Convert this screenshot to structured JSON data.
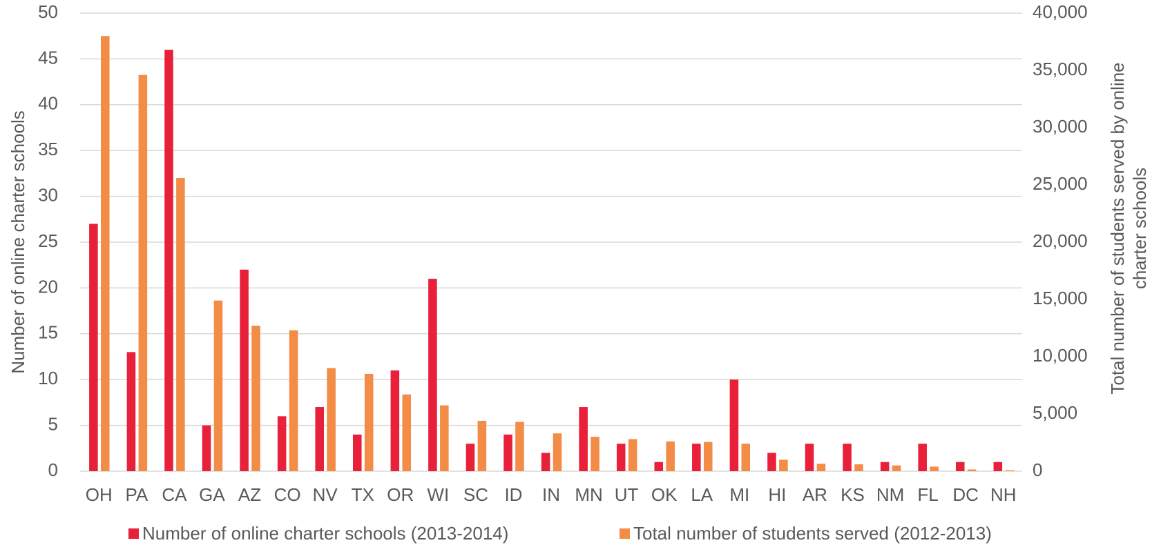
{
  "chart_data": {
    "type": "bar",
    "ylabel": "Number of online charter schools",
    "y2label": [
      "Total number of students served by online",
      "charter schools"
    ],
    "categories": [
      "OH",
      "PA",
      "CA",
      "GA",
      "AZ",
      "CO",
      "NV",
      "TX",
      "OR",
      "WI",
      "SC",
      "ID",
      "IN",
      "MN",
      "UT",
      "OK",
      "LA",
      "MI",
      "HI",
      "AR",
      "KS",
      "NM",
      "FL",
      "DC",
      "NH"
    ],
    "series": [
      {
        "name": "Number of online charter schools (2013-2014)",
        "color": "#e8203a",
        "values": [
          27,
          13,
          46,
          5,
          22,
          6,
          7,
          4,
          11,
          21,
          3,
          4,
          2,
          7,
          3,
          1,
          3,
          10,
          2,
          3,
          3,
          1,
          3,
          1,
          1
        ]
      },
      {
        "name": "Total number of students served (2012-2013)",
        "color": "#f28c46",
        "axis": "y2",
        "values": [
          38000,
          34600,
          25600,
          14900,
          12700,
          12300,
          9000,
          8500,
          6700,
          5750,
          4400,
          4300,
          3300,
          3000,
          2800,
          2600,
          2550,
          2400,
          1000,
          650,
          600,
          500,
          400,
          150,
          80
        ]
      }
    ],
    "ylim": [
      0,
      50
    ],
    "yticks": [
      0,
      5,
      10,
      15,
      20,
      25,
      30,
      35,
      40,
      45,
      50
    ],
    "y2lim": [
      0,
      40000
    ],
    "y2ticks": [
      0,
      {
        "value": 5000,
        "label": "5,000"
      },
      {
        "value": 10000,
        "label": "10,000"
      },
      {
        "value": 15000,
        "label": "15,000"
      },
      {
        "value": 20000,
        "label": "20,000"
      },
      {
        "value": 25000,
        "label": "25,000"
      },
      {
        "value": 30000,
        "label": "30,000"
      },
      {
        "value": 35000,
        "label": "35,000"
      },
      {
        "value": 40000,
        "label": "40,000"
      }
    ],
    "grid": true,
    "legend": "bottom"
  }
}
